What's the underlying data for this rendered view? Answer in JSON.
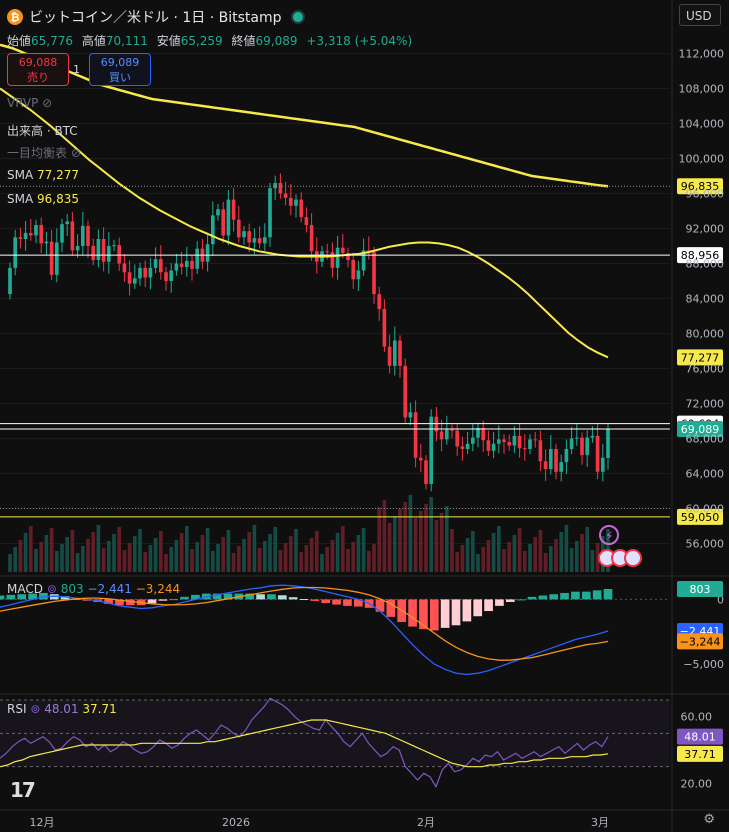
{
  "header": {
    "symbol_title": "ビットコイン／米ドル · 1日 · Bitstamp",
    "coin_glyph": "₿",
    "currency_selector": "USD"
  },
  "ohlc": {
    "open_label": "始値",
    "open": "65,776",
    "high_label": "高値",
    "high": "70,111",
    "low_label": "安値",
    "low": "65,259",
    "close_label": "終値",
    "close": "69,089",
    "change": "+3,318 (+5.04%)"
  },
  "trade": {
    "sell_price": "69,088",
    "sell_label": "売り",
    "qty": "1",
    "buy_price": "69,089",
    "buy_label": "買い"
  },
  "indicators": {
    "vrvp": "VRVP",
    "volume": "出来高 · BTC",
    "ichimoku": "一目均衡表",
    "sma1_label": "SMA",
    "sma1_value": "77,277",
    "sma2_label": "SMA",
    "sma2_value": "96,835"
  },
  "macd_legend": {
    "label": "MACD",
    "hist": "803",
    "macd": "−2,441",
    "signal": "−3,244"
  },
  "rsi_legend": {
    "label": "RSI",
    "rsi": "48.01",
    "ma": "37.71"
  },
  "colors": {
    "up": "#22ab94",
    "down": "#f23645",
    "sma_long": "#f7e94a",
    "sma_short": "#f7e94a",
    "macd": "#2962ff",
    "signal": "#f7931a",
    "rsi": "#7e57c2",
    "rsi_ma": "#f7e94a"
  },
  "chart_data": [
    {
      "type": "candlestick",
      "ylim": [
        54000,
        114000
      ],
      "y_ticks": [
        "112,000",
        "108,000",
        "104,000",
        "100,000",
        "96,000",
        "92,000",
        "88,000",
        "84,000",
        "80,000",
        "76,000",
        "72,000",
        "68,000",
        "64,000",
        "60,000",
        "56,000"
      ],
      "x_ticks": [
        "12月",
        "2026",
        "2月",
        "3月"
      ],
      "horizontal_lines": [
        {
          "value": 88956,
          "label": "88,956"
        },
        {
          "value": 69694,
          "label": "69,694"
        },
        {
          "value": 69089,
          "label": "69,089"
        },
        {
          "value": 59050,
          "label": "59,050"
        }
      ],
      "last_labels": {
        "sma_long": "96,835",
        "sma_short": "77,277"
      },
      "closes": [
        87500,
        91000,
        90800,
        91500,
        91200,
        92400,
        90300,
        90500,
        86700,
        90400,
        92500,
        92800,
        89500,
        90000,
        92300,
        90000,
        88400,
        90800,
        88200,
        90000,
        90100,
        88000,
        87000,
        85700,
        86300,
        87500,
        86400,
        87500,
        88500,
        87000,
        86000,
        87200,
        88000,
        87600,
        88300,
        87400,
        89700,
        88200,
        90200,
        93500,
        94200,
        91200,
        95300,
        93000,
        91000,
        91700,
        90400,
        90900,
        90300,
        91000,
        96600,
        97200,
        96000,
        95500,
        94600,
        95300,
        93300,
        92400,
        89400,
        88200,
        89400,
        89300,
        87500,
        89800,
        89200,
        88400,
        86200,
        87200,
        89500,
        89300,
        84500,
        82800,
        78500,
        76300,
        79200,
        76300,
        70400,
        71000,
        65800,
        65500,
        62800,
        70500,
        68800,
        67900,
        69000,
        68900,
        67100,
        66800,
        67400,
        68100,
        69200,
        67800,
        66600,
        67400,
        67900,
        67600,
        67200,
        68300,
        66900,
        66800,
        67900,
        67800,
        65400,
        64500,
        66800,
        64200,
        65300,
        66800,
        68000,
        68100,
        66100,
        68100,
        68300,
        64200,
        65800,
        69089
      ],
      "opens": [
        84500,
        87500,
        91000,
        90800,
        91500,
        91200,
        92400,
        90300,
        90500,
        86700,
        90400,
        92500,
        92800,
        89500,
        90000,
        92300,
        90000,
        88400,
        90800,
        88200,
        90000,
        90100,
        88000,
        87000,
        85700,
        86300,
        87500,
        86400,
        87500,
        88500,
        87000,
        86000,
        87200,
        88000,
        87600,
        88300,
        87400,
        89700,
        88200,
        90200,
        93500,
        94200,
        91200,
        95300,
        93000,
        91000,
        91700,
        90400,
        90900,
        90300,
        91000,
        96600,
        97200,
        96000,
        95500,
        94600,
        95300,
        93300,
        92400,
        89400,
        88200,
        89400,
        89300,
        87500,
        89800,
        89200,
        88400,
        86200,
        87200,
        89500,
        89300,
        84500,
        82800,
        78500,
        76300,
        79200,
        76300,
        70400,
        71000,
        65800,
        65500,
        62800,
        70500,
        68800,
        67900,
        69000,
        68900,
        67100,
        66800,
        67400,
        68100,
        69200,
        67800,
        66600,
        67400,
        67900,
        67600,
        67200,
        68300,
        66900,
        66800,
        67900,
        67800,
        65400,
        64500,
        66800,
        64200,
        65300,
        66800,
        68000,
        68100,
        66100,
        68100,
        68300,
        64200,
        65776
      ],
      "sma_long": [
        113000,
        112800,
        112600,
        112300,
        112000,
        111700,
        111400,
        111100,
        110800,
        110500,
        110200,
        109900,
        109600,
        109300,
        109000,
        108700,
        108400,
        108200,
        108000,
        107800,
        107600,
        107400,
        107200,
        107000,
        106800,
        106700,
        106600,
        106500,
        106400,
        106300,
        106200,
        106100,
        106000,
        105900,
        105800,
        105700,
        105600,
        105500,
        105400,
        105300,
        105200,
        105100,
        105000,
        104900,
        104800,
        104700,
        104600,
        104500,
        104400,
        104300,
        104200,
        104100,
        104000,
        103900,
        103800,
        103700,
        103600,
        103400,
        103200,
        103000,
        102800,
        102600,
        102400,
        102200,
        102000,
        101800,
        101600,
        101400,
        101200,
        101000,
        100800,
        100600,
        100400,
        100200,
        100000,
        99800,
        99600,
        99400,
        99200,
        99000,
        98800,
        98600,
        98400,
        98200,
        98000,
        97900,
        97800,
        97700,
        97600,
        97500,
        97400,
        97300,
        97200,
        97100,
        97000,
        96900,
        96835
      ],
      "sma_short": [
        108000,
        107200,
        106400,
        105600,
        104700,
        103800,
        102800,
        101800,
        100800,
        99800,
        98900,
        98000,
        97100,
        96300,
        95500,
        94800,
        94100,
        93500,
        92900,
        92300,
        91800,
        91300,
        90800,
        90400,
        90000,
        89700,
        89400,
        89200,
        89000,
        88900,
        88800,
        88800,
        88800,
        88800,
        88900,
        89000,
        89100,
        89300,
        89600,
        89900,
        90100,
        90300,
        90400,
        90400,
        90300,
        90100,
        89800,
        89300,
        88700,
        88000,
        87200,
        86400,
        85500,
        84500,
        83400,
        82300,
        81200,
        80100,
        79200,
        78400,
        77800,
        77277
      ]
    },
    {
      "type": "bar",
      "name": "volume",
      "note_relative": true
    },
    {
      "type": "histogram+line",
      "ylim": [
        -7000,
        1500
      ],
      "y_ticks": [
        "0",
        "−5,000"
      ],
      "hist_last": 803,
      "macd_last": -2441,
      "signal_last": -3244,
      "macd": [
        -600,
        -400,
        -200,
        0,
        200,
        250,
        200,
        100,
        0,
        -100,
        -300,
        -500,
        -600,
        -700,
        -650,
        -500,
        -400,
        -200,
        0,
        200,
        350,
        500,
        650,
        800,
        900,
        1050,
        1100,
        1050,
        950,
        800,
        600,
        400,
        200,
        0,
        -300,
        -900,
        -1700,
        -2600,
        -3500,
        -4300,
        -5000,
        -5400,
        -5700,
        -5800,
        -5700,
        -5500,
        -5200,
        -4900,
        -4600,
        -4300,
        -4000,
        -3700,
        -3400,
        -3100,
        -2900,
        -2700,
        -2441
      ],
      "signal": [
        -900,
        -750,
        -600,
        -450,
        -300,
        -150,
        -50,
        50,
        100,
        100,
        50,
        -50,
        -150,
        -250,
        -350,
        -400,
        -420,
        -400,
        -350,
        -250,
        -100,
        50,
        200,
        350,
        500,
        650,
        780,
        880,
        920,
        920,
        880,
        800,
        700,
        550,
        350,
        50,
        -350,
        -850,
        -1400,
        -2000,
        -2600,
        -3200,
        -3700,
        -4100,
        -4400,
        -4600,
        -4700,
        -4700,
        -4600,
        -4500,
        -4300,
        -4100,
        -3900,
        -3700,
        -3500,
        -3400,
        -3244
      ]
    },
    {
      "type": "line",
      "name": "RSI",
      "ylim": [
        10,
        70
      ],
      "y_ticks": [
        "60.00",
        "20.00"
      ],
      "bands": [
        70,
        50,
        30
      ],
      "rsi": [
        35,
        38,
        42,
        45,
        47,
        44,
        46,
        48,
        45,
        40,
        41,
        45,
        48,
        46,
        42,
        44,
        40,
        43,
        39,
        41,
        45,
        43,
        40,
        38,
        39,
        42,
        46,
        44,
        41,
        43,
        47,
        50,
        52,
        49,
        46,
        50,
        55,
        53,
        50,
        48,
        52,
        58,
        62,
        66,
        71,
        69,
        67,
        64,
        60,
        57,
        55,
        53,
        52,
        58,
        54,
        50,
        45,
        42,
        46,
        50,
        44,
        40,
        36,
        38,
        42,
        40,
        30,
        26,
        22,
        26,
        24,
        18,
        28,
        32,
        27,
        28,
        31,
        35,
        33,
        37,
        36,
        39,
        34,
        36,
        38,
        35,
        37,
        39,
        36,
        38,
        40,
        42,
        38,
        41,
        44,
        40,
        43,
        45,
        42,
        48.01
      ],
      "rsi_ma": [
        30,
        31,
        33,
        34,
        36,
        37,
        38,
        39,
        40,
        41,
        42,
        43,
        43,
        43,
        43,
        43,
        43,
        43,
        43,
        44,
        44,
        44,
        44,
        44,
        44,
        44,
        44,
        44,
        45,
        45,
        46,
        47,
        48,
        49,
        50,
        51,
        52,
        53,
        54,
        55,
        56,
        57,
        58,
        58,
        58,
        57,
        56,
        55,
        54,
        53,
        52,
        51,
        50,
        48,
        46,
        44,
        42,
        40,
        38,
        36,
        34,
        32,
        31,
        30,
        30,
        30,
        31,
        31,
        32,
        32,
        33,
        33,
        34,
        34,
        35,
        35,
        35,
        36,
        36,
        36,
        37,
        37,
        37.71
      ]
    }
  ]
}
